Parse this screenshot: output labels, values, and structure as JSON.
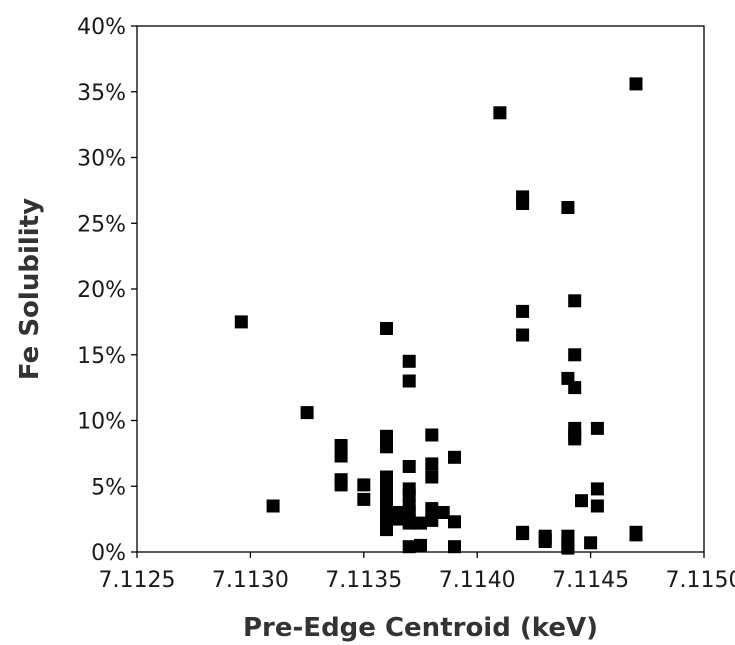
{
  "chart_data": {
    "type": "scatter",
    "title": "",
    "xlabel": "Pre-Edge Centroid (keV)",
    "ylabel": "Fe Solubility",
    "xlim": [
      7.1125,
      7.115
    ],
    "ylim": [
      0,
      0.4
    ],
    "grid": false,
    "legend": "none",
    "marker": "square",
    "marker_color": "#000000",
    "x_ticks": [
      "7.1125",
      "7.1130",
      "7.1135",
      "7.1140",
      "7.1145",
      "7.1150"
    ],
    "x_tick_values": [
      7.1125,
      7.113,
      7.1135,
      7.114,
      7.1145,
      7.115
    ],
    "y_ticks": [
      "0%",
      "5%",
      "10%",
      "15%",
      "20%",
      "25%",
      "30%",
      "35%",
      "40%"
    ],
    "y_tick_values": [
      0,
      0.05,
      0.1,
      0.15,
      0.2,
      0.25,
      0.3,
      0.35,
      0.4
    ],
    "series": [
      {
        "points": [
          [
            7.11296,
            0.175
          ],
          [
            7.1131,
            0.035
          ],
          [
            7.11325,
            0.106
          ],
          [
            7.1134,
            0.081
          ],
          [
            7.1134,
            0.073
          ],
          [
            7.1134,
            0.055
          ],
          [
            7.1134,
            0.051
          ],
          [
            7.1135,
            0.051
          ],
          [
            7.1135,
            0.04
          ],
          [
            7.1136,
            0.17
          ],
          [
            7.1136,
            0.088
          ],
          [
            7.1136,
            0.085
          ],
          [
            7.1136,
            0.08
          ],
          [
            7.1136,
            0.057
          ],
          [
            7.1136,
            0.052
          ],
          [
            7.1136,
            0.046
          ],
          [
            7.1136,
            0.04
          ],
          [
            7.1136,
            0.032
          ],
          [
            7.1136,
            0.028
          ],
          [
            7.1136,
            0.022
          ],
          [
            7.1136,
            0.017
          ],
          [
            7.11365,
            0.03
          ],
          [
            7.11365,
            0.025
          ],
          [
            7.1137,
            0.145
          ],
          [
            7.1137,
            0.13
          ],
          [
            7.1137,
            0.065
          ],
          [
            7.1137,
            0.048
          ],
          [
            7.1137,
            0.043
          ],
          [
            7.1137,
            0.035
          ],
          [
            7.1137,
            0.03
          ],
          [
            7.1137,
            0.025
          ],
          [
            7.1137,
            0.022
          ],
          [
            7.1137,
            0.004
          ],
          [
            7.11375,
            0.005
          ],
          [
            7.11375,
            0.022
          ],
          [
            7.1138,
            0.089
          ],
          [
            7.1138,
            0.067
          ],
          [
            7.1138,
            0.057
          ],
          [
            7.1138,
            0.033
          ],
          [
            7.1138,
            0.024
          ],
          [
            7.11385,
            0.03
          ],
          [
            7.1139,
            0.072
          ],
          [
            7.1139,
            0.023
          ],
          [
            7.1139,
            0.004
          ],
          [
            7.1141,
            0.334
          ],
          [
            7.1142,
            0.27
          ],
          [
            7.1142,
            0.265
          ],
          [
            7.1142,
            0.183
          ],
          [
            7.1142,
            0.165
          ],
          [
            7.1142,
            0.015
          ],
          [
            7.1142,
            0.014
          ],
          [
            7.1143,
            0.012
          ],
          [
            7.1143,
            0.01
          ],
          [
            7.1143,
            0.008
          ],
          [
            7.1144,
            0.262
          ],
          [
            7.1144,
            0.132
          ],
          [
            7.1144,
            0.012
          ],
          [
            7.1144,
            0.008
          ],
          [
            7.1144,
            0.005
          ],
          [
            7.1144,
            0.003
          ],
          [
            7.11443,
            0.191
          ],
          [
            7.11443,
            0.15
          ],
          [
            7.11443,
            0.125
          ],
          [
            7.11443,
            0.094
          ],
          [
            7.11443,
            0.089
          ],
          [
            7.11443,
            0.086
          ],
          [
            7.11446,
            0.039
          ],
          [
            7.1145,
            0.007
          ],
          [
            7.11453,
            0.094
          ],
          [
            7.11453,
            0.048
          ],
          [
            7.11453,
            0.035
          ],
          [
            7.1147,
            0.356
          ],
          [
            7.1147,
            0.015
          ],
          [
            7.1147,
            0.013
          ]
        ]
      }
    ]
  }
}
